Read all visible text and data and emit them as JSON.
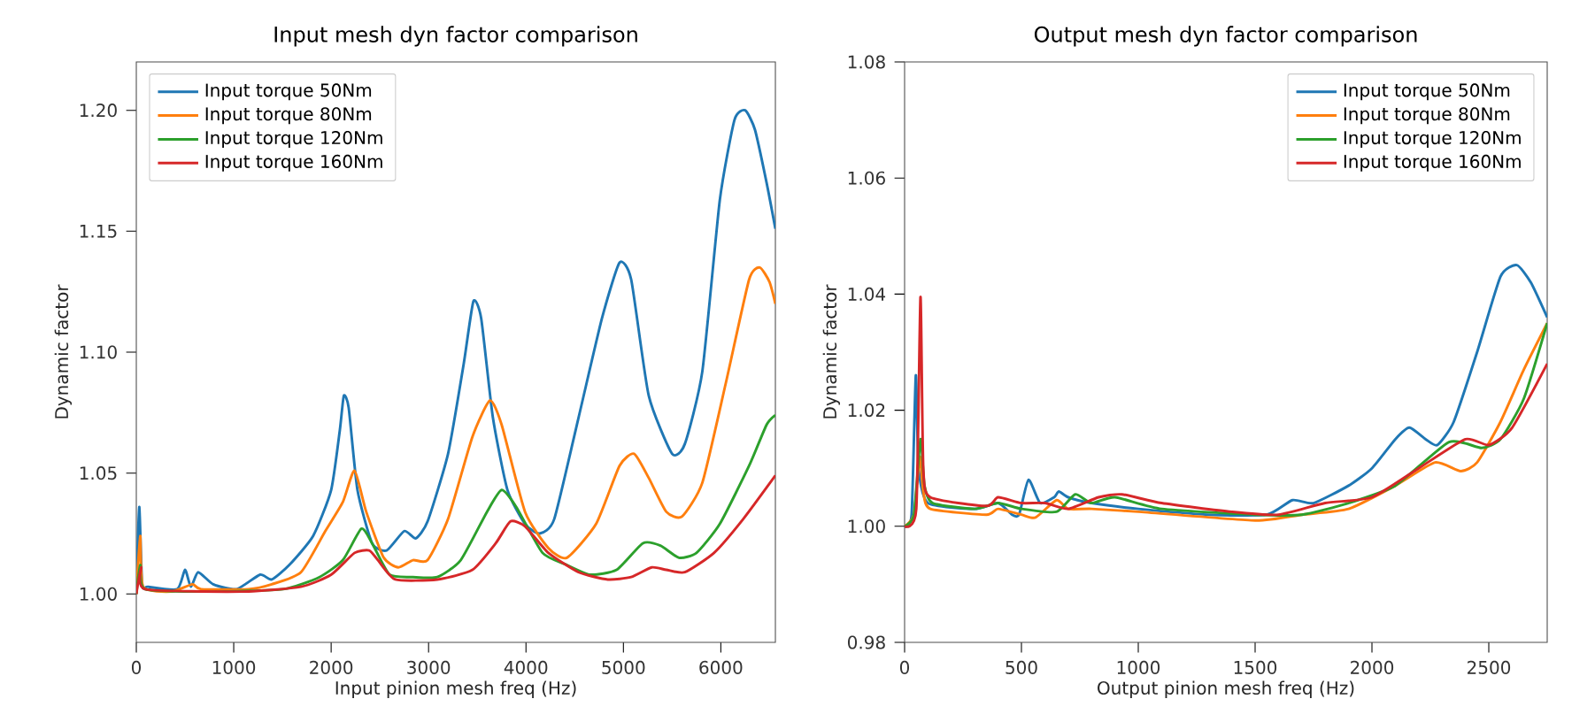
{
  "chart_data": [
    {
      "type": "line",
      "title": "Input mesh dyn factor comparison",
      "xlabel": "Input pinion mesh freq (Hz)",
      "ylabel": "Dynamic factor",
      "xlim": [
        0,
        6560
      ],
      "ylim": [
        0.98,
        1.22
      ],
      "xticks": [
        0,
        1000,
        2000,
        3000,
        4000,
        5000,
        6000
      ],
      "yticks": [
        {
          "value": 1.0,
          "label": "1.00"
        },
        {
          "value": 1.05,
          "label": "1.05"
        },
        {
          "value": 1.1,
          "label": "1.10"
        },
        {
          "value": 1.15,
          "label": "1.15"
        },
        {
          "value": 1.2,
          "label": "1.20"
        }
      ],
      "legend": "top left",
      "marker": "none",
      "line_style": "solid",
      "grid": false,
      "series": [
        {
          "name": "Input torque 50Nm",
          "color": "#1f77b4",
          "x": [
            0,
            30,
            60,
            120,
            420,
            500,
            560,
            635,
            790,
            1030,
            1270,
            1390,
            1570,
            1815,
            2000,
            2090,
            2130,
            2180,
            2270,
            2420,
            2570,
            2750,
            2870,
            2990,
            3200,
            3360,
            3460,
            3540,
            3660,
            3810,
            3990,
            4140,
            4290,
            4540,
            4780,
            4960,
            5080,
            5260,
            5500,
            5630,
            5810,
            5990,
            6140,
            6250,
            6350,
            6470,
            6560
          ],
          "values": [
            1.0,
            1.036,
            1.004,
            1.003,
            1.002,
            1.01,
            1.003,
            1.009,
            1.004,
            1.002,
            1.008,
            1.006,
            1.012,
            1.024,
            1.043,
            1.068,
            1.082,
            1.077,
            1.043,
            1.021,
            1.018,
            1.026,
            1.023,
            1.03,
            1.058,
            1.095,
            1.121,
            1.114,
            1.073,
            1.043,
            1.029,
            1.025,
            1.031,
            1.073,
            1.114,
            1.137,
            1.13,
            1.082,
            1.058,
            1.062,
            1.092,
            1.163,
            1.196,
            1.2,
            1.192,
            1.17,
            1.151
          ]
        },
        {
          "name": "Input torque 80Nm",
          "color": "#ff7f0e",
          "x": [
            0,
            40,
            70,
            360,
            575,
            665,
            1150,
            1390,
            1690,
            1940,
            2120,
            2240,
            2360,
            2540,
            2690,
            2840,
            2990,
            3200,
            3450,
            3630,
            3750,
            3990,
            4230,
            4420,
            4720,
            4960,
            5110,
            5260,
            5440,
            5600,
            5810,
            6050,
            6290,
            6400,
            6500,
            6560
          ],
          "values": [
            1.0,
            1.024,
            1.003,
            1.001,
            1.004,
            1.002,
            1.002,
            1.004,
            1.009,
            1.026,
            1.038,
            1.051,
            1.034,
            1.015,
            1.011,
            1.014,
            1.014,
            1.031,
            1.065,
            1.08,
            1.07,
            1.034,
            1.019,
            1.015,
            1.029,
            1.053,
            1.058,
            1.048,
            1.034,
            1.032,
            1.046,
            1.087,
            1.13,
            1.135,
            1.129,
            1.12
          ]
        },
        {
          "name": "Input torque 120Nm",
          "color": "#2ca02c",
          "x": [
            0,
            40,
            90,
            790,
            1510,
            1880,
            2120,
            2310,
            2420,
            2600,
            2840,
            3090,
            3330,
            3600,
            3750,
            3900,
            4170,
            4420,
            4660,
            4930,
            5200,
            5380,
            5570,
            5750,
            5990,
            6290,
            6470,
            6560
          ],
          "values": [
            1.0,
            1.012,
            1.002,
            1.001,
            1.002,
            1.007,
            1.014,
            1.027,
            1.021,
            1.008,
            1.007,
            1.007,
            1.014,
            1.034,
            1.043,
            1.036,
            1.017,
            1.012,
            1.008,
            1.01,
            1.021,
            1.02,
            1.015,
            1.017,
            1.029,
            1.053,
            1.07,
            1.074
          ]
        },
        {
          "name": "Input torque 160Nm",
          "color": "#d62728",
          "x": [
            0,
            50,
            90,
            1090,
            1690,
            2000,
            2240,
            2390,
            2480,
            2660,
            3090,
            3450,
            3690,
            3840,
            3990,
            4230,
            4540,
            4840,
            5080,
            5290,
            5440,
            5630,
            5930,
            6230,
            6560
          ],
          "values": [
            1.0,
            1.011,
            1.002,
            1.001,
            1.003,
            1.008,
            1.017,
            1.018,
            1.014,
            1.006,
            1.006,
            1.01,
            1.021,
            1.03,
            1.028,
            1.017,
            1.009,
            1.006,
            1.007,
            1.011,
            1.01,
            1.009,
            1.017,
            1.031,
            1.049
          ]
        }
      ]
    },
    {
      "type": "line",
      "title": "Output mesh dyn factor comparison",
      "xlabel": "Output pinion mesh freq (Hz)",
      "ylabel": "Dynamic factor",
      "xlim": [
        0,
        2750
      ],
      "ylim": [
        0.98,
        1.08
      ],
      "xticks": [
        0,
        500,
        1000,
        1500,
        2000,
        2500
      ],
      "yticks": [
        0.98,
        {
          "value": 1.0,
          "label": "1.00"
        },
        1.02,
        1.04,
        1.06,
        1.08
      ],
      "legend": "top right",
      "marker": "none",
      "line_style": "solid",
      "grid": false,
      "series": [
        {
          "name": "Input torque 50Nm",
          "color": "#1f77b4",
          "x": [
            0,
            30,
            48,
            60,
            100,
            300,
            400,
            460,
            490,
            530,
            580,
            640,
            660,
            700,
            800,
            1000,
            1300,
            1550,
            1660,
            1750,
            1900,
            2000,
            2100,
            2160,
            2230,
            2280,
            2350,
            2450,
            2550,
            2620,
            2680,
            2750
          ],
          "values": [
            1.0,
            1.002,
            1.026,
            1.01,
            1.004,
            1.003,
            1.004,
            1.002,
            1.002,
            1.008,
            1.004,
            1.005,
            1.006,
            1.005,
            1.004,
            1.003,
            1.002,
            1.002,
            1.0045,
            1.004,
            1.007,
            1.01,
            1.015,
            1.017,
            1.015,
            1.014,
            1.018,
            1.03,
            1.043,
            1.045,
            1.042,
            1.036
          ]
        },
        {
          "name": "Input torque 80Nm",
          "color": "#ff7f0e",
          "x": [
            0,
            40,
            65,
            80,
            110,
            350,
            400,
            500,
            560,
            650,
            700,
            800,
            1000,
            1500,
            1700,
            1900,
            2100,
            2270,
            2380,
            2450,
            2550,
            2650,
            2750
          ],
          "values": [
            1.0,
            1.002,
            1.012,
            1.006,
            1.003,
            1.002,
            1.003,
            1.002,
            1.0015,
            1.0045,
            1.003,
            1.003,
            1.0025,
            1.001,
            1.002,
            1.003,
            1.007,
            1.011,
            1.0095,
            1.011,
            1.018,
            1.027,
            1.035
          ]
        },
        {
          "name": "Input torque 120Nm",
          "color": "#2ca02c",
          "x": [
            0,
            40,
            68,
            85,
            120,
            300,
            400,
            500,
            650,
            730,
            800,
            900,
            1100,
            1500,
            1700,
            1900,
            2100,
            2330,
            2470,
            2550,
            2650,
            2750
          ],
          "values": [
            1.0,
            1.002,
            1.015,
            1.007,
            1.004,
            1.003,
            1.004,
            1.003,
            1.0025,
            1.0055,
            1.004,
            1.005,
            1.003,
            1.002,
            1.002,
            1.004,
            1.007,
            1.0145,
            1.0135,
            1.015,
            1.022,
            1.035
          ]
        },
        {
          "name": "Input torque 160Nm",
          "color": "#d62728",
          "x": [
            0,
            50,
            68,
            80,
            110,
            350,
            400,
            500,
            600,
            700,
            830,
            930,
            1100,
            1400,
            1600,
            1800,
            2000,
            2200,
            2400,
            2500,
            2600,
            2750
          ],
          "values": [
            1.0,
            1.003,
            1.0395,
            1.01,
            1.005,
            1.0035,
            1.005,
            1.004,
            1.004,
            1.003,
            1.005,
            1.0055,
            1.004,
            1.0025,
            1.002,
            1.004,
            1.005,
            1.01,
            1.015,
            1.014,
            1.017,
            1.028
          ]
        }
      ]
    }
  ]
}
